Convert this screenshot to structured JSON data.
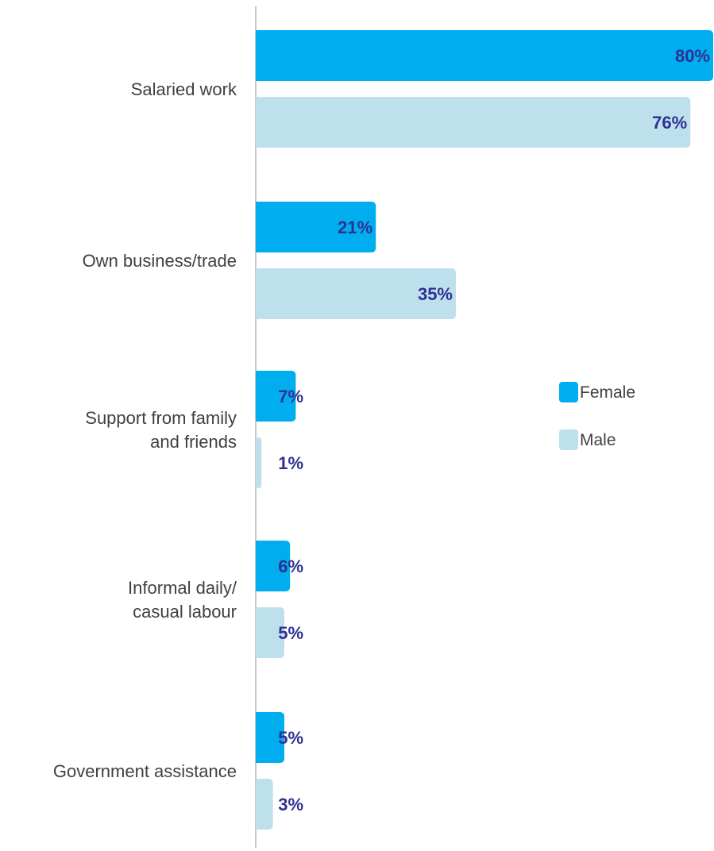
{
  "chart_data": {
    "type": "bar",
    "orientation": "horizontal",
    "categories": [
      [
        "Salaried work"
      ],
      [
        "Own business/trade"
      ],
      [
        "Support from family",
        "and friends"
      ],
      [
        "Informal daily/",
        "casual labour"
      ],
      [
        "Government assistance"
      ]
    ],
    "series": [
      {
        "name": "Female",
        "color": "#00aeef",
        "values": [
          80,
          21,
          7,
          6,
          5
        ],
        "labels": [
          "80%",
          "21%",
          "7%",
          "6%",
          "5%"
        ]
      },
      {
        "name": "Male",
        "color": "#bde0ec",
        "values": [
          76,
          35,
          1,
          5,
          3
        ],
        "labels": [
          "76%",
          "35%",
          "1%",
          "5%",
          "3%"
        ]
      }
    ],
    "xlim": [
      0,
      80
    ],
    "legend_position": "right-middle",
    "grid": false,
    "label_color": "#2e3192",
    "axis_color": "#c8c8c8"
  }
}
